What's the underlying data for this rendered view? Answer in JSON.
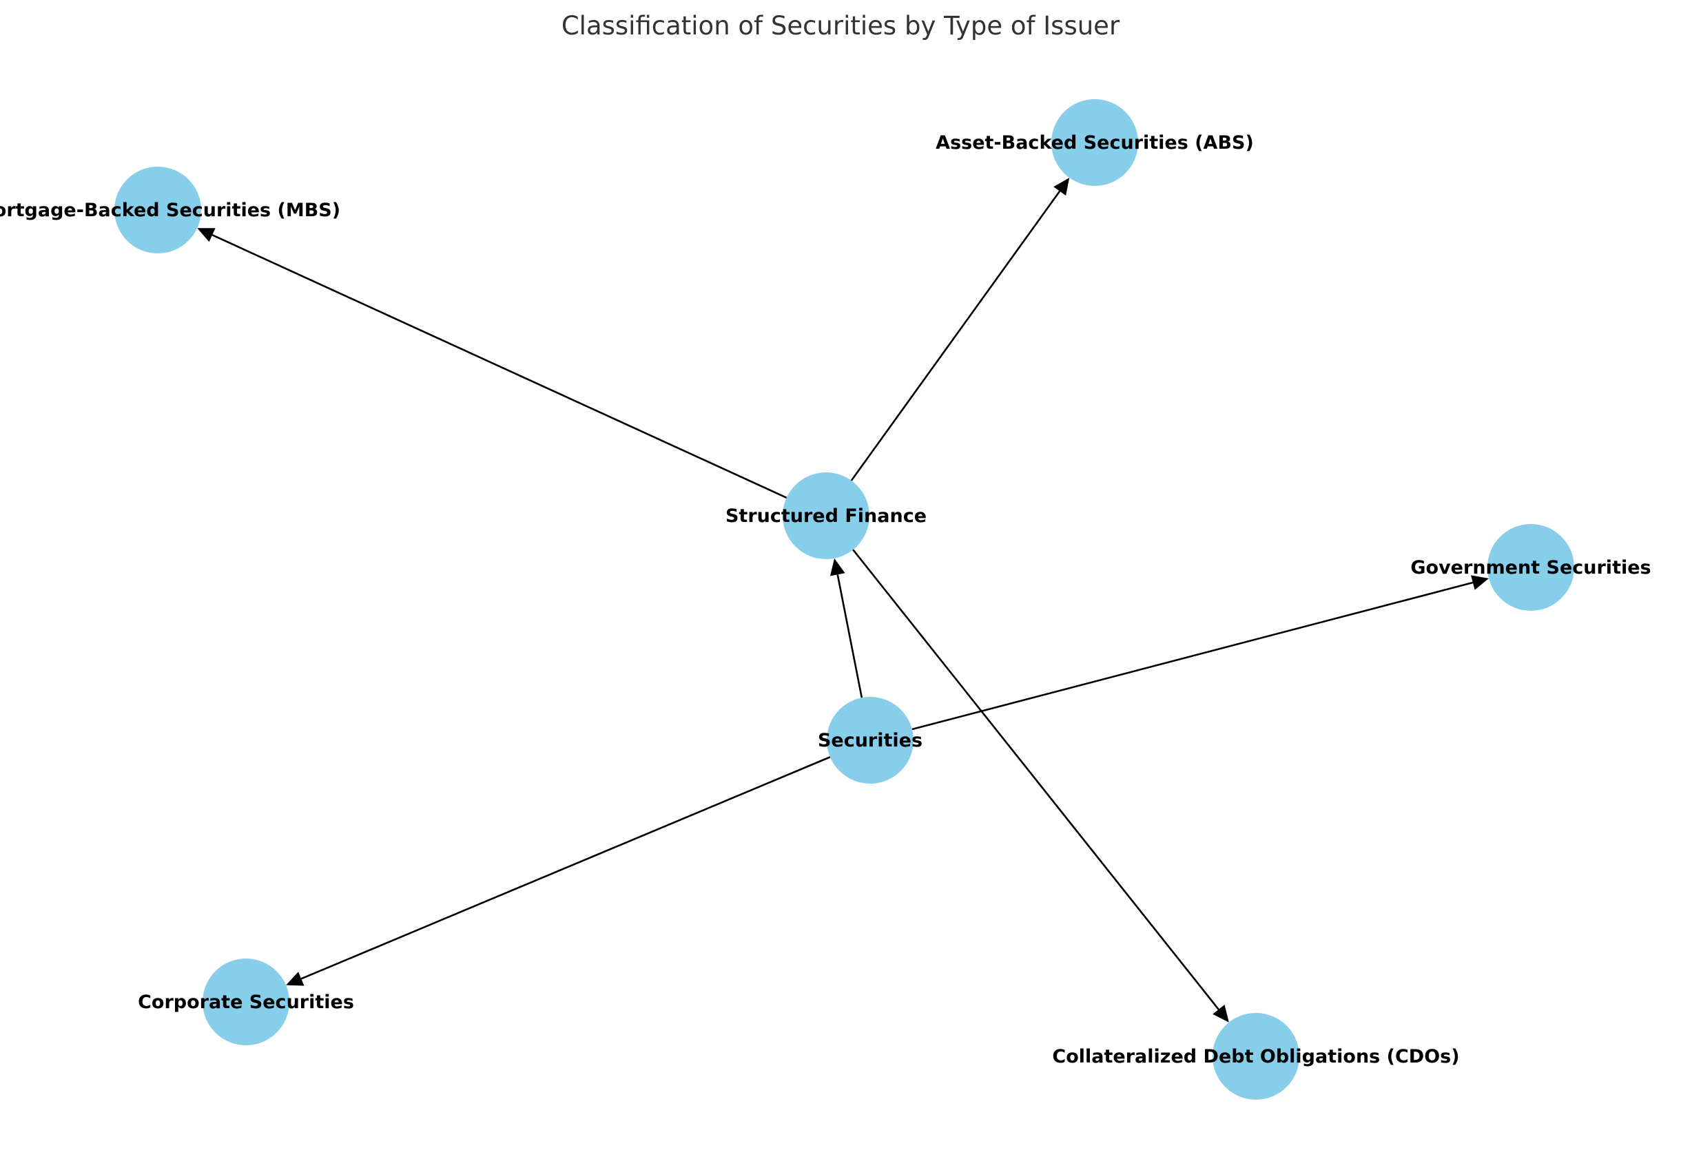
{
  "title": "Classification of Securities by Type of Issuer",
  "colors": {
    "node": "#87CEEB",
    "edge": "#000000",
    "label": "#000000",
    "title": "#333333"
  },
  "nodes": [
    {
      "id": "securities",
      "label": "Securities"
    },
    {
      "id": "structured",
      "label": "Structured Finance"
    },
    {
      "id": "mbs",
      "label": "Mortgage-Backed Securities (MBS)"
    },
    {
      "id": "abs",
      "label": "Asset-Backed Securities (ABS)"
    },
    {
      "id": "gov",
      "label": "Government Securities"
    },
    {
      "id": "corp",
      "label": "Corporate Securities"
    },
    {
      "id": "cdo",
      "label": "Collateralized Debt Obligations (CDOs)"
    }
  ],
  "edges": [
    {
      "from": "securities",
      "to": "structured"
    },
    {
      "from": "securities",
      "to": "gov"
    },
    {
      "from": "securities",
      "to": "corp"
    },
    {
      "from": "structured",
      "to": "mbs"
    },
    {
      "from": "structured",
      "to": "abs"
    },
    {
      "from": "structured",
      "to": "cdo"
    }
  ]
}
